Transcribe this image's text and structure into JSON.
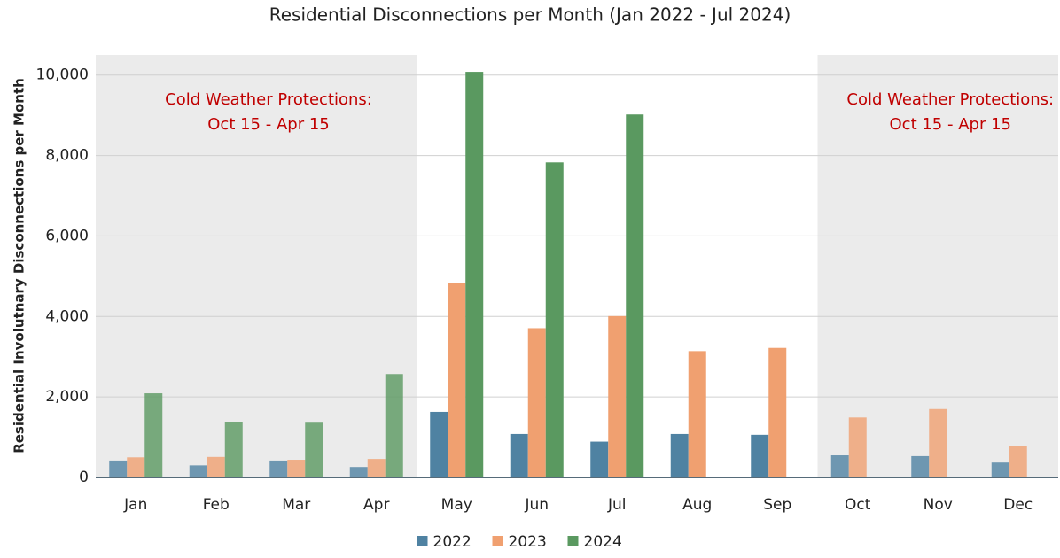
{
  "chart_data": {
    "type": "bar",
    "title": "Residential Disconnections per Month (Jan 2022 - Jul 2024)",
    "y_label": "Residential Involutnary Disconnections per Month",
    "categories": [
      "Jan",
      "Feb",
      "Mar",
      "Apr",
      "May",
      "Jun",
      "Jul",
      "Aug",
      "Sep",
      "Oct",
      "Nov",
      "Dec"
    ],
    "series": [
      {
        "name": "2022",
        "color": "#4f82a2",
        "values": [
          420,
          300,
          420,
          260,
          1630,
          1080,
          890,
          1080,
          1060,
          550,
          530,
          370
        ]
      },
      {
        "name": "2023",
        "color": "#f0a070",
        "values": [
          500,
          510,
          440,
          460,
          4830,
          3710,
          4010,
          3140,
          3220,
          1490,
          1700,
          780
        ]
      },
      {
        "name": "2024",
        "color": "#5a9960",
        "values": [
          2090,
          1380,
          1360,
          2570,
          10080,
          7830,
          9020,
          null,
          null,
          null,
          null,
          null
        ]
      }
    ],
    "ylim": [
      0,
      10500
    ],
    "yticks": [
      0,
      {
        "value": 2000,
        "label": "2,000"
      },
      {
        "value": 4000,
        "label": "4,000"
      },
      {
        "value": 6000,
        "label": "6,000"
      },
      {
        "value": 8000,
        "label": "8,000"
      },
      {
        "value": 10000,
        "label": "10,000"
      }
    ],
    "grid": true,
    "legend": "bottom",
    "annotations": [
      {
        "lines": [
          "Cold Weather Protections:",
          "Oct 15 - Apr 15"
        ],
        "span": [
          "Jan",
          "Apr"
        ],
        "color": "#c00000"
      },
      {
        "lines": [
          "Cold Weather Protections:",
          "Oct 15 - Apr 15"
        ],
        "span": [
          "Oct",
          "Dec"
        ],
        "color": "#c00000"
      }
    ]
  }
}
